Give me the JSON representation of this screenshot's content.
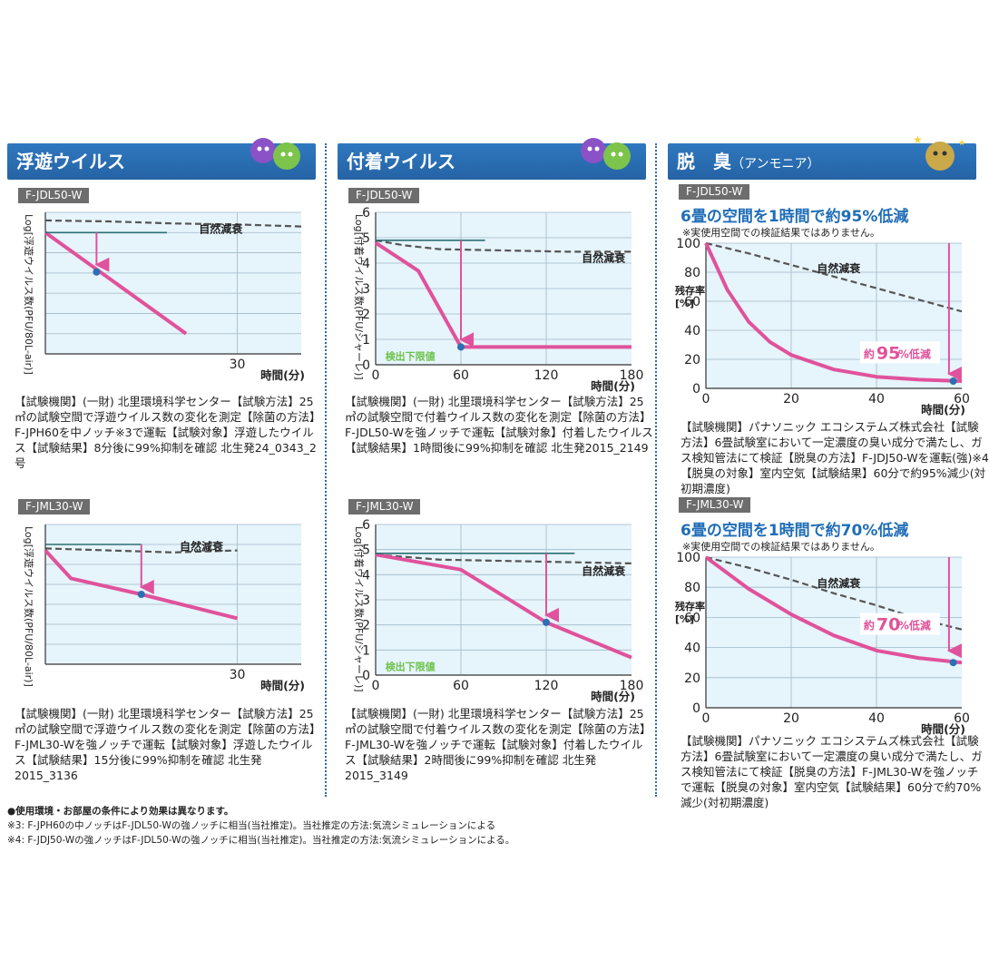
{
  "sections": {
    "s1": {
      "title": "浮遊ウイルス"
    },
    "s2": {
      "title": "付着ウイルス"
    },
    "s3": {
      "title": "脱　臭",
      "subtitle": "（アンモニア）"
    }
  },
  "panels": {
    "p1": {
      "model": "F-JDL50-W",
      "desc": "【試験機関】(一財) 北里環境科学センター【試験方法】25㎥の試験空間で浮遊ウイルス数の変化を測定【除菌の方法】F-JPH60を中ノッチ※3で運転【試験対象】浮遊したウイルス【試験結果】8分後に99%抑制を確認 北生発24_0343_2号"
    },
    "p2": {
      "model": "F-JDL50-W",
      "desc": "【試験機関】(一財) 北里環境科学センター【試験方法】25㎥の試験空間で付着ウイルス数の変化を測定【除菌の方法】F-JDL50-Wを強ノッチで運転【試験対象】付着したウイルス【試験結果】1時間後に99%抑制を確認 北生発2015_2149"
    },
    "p3": {
      "model": "F-JDL50-W",
      "headline": "6畳の空間を1時間で約95%低減",
      "note": "※実使用空間での検証結果ではありません。",
      "desc": "【試験機関】パナソニック エコシステムズ株式会社【試験方法】6畳試験室において一定濃度の臭い成分で満たし、ガス検知管法にて検証【脱臭の方法】F-JDJ50-Wを運転(強)※4【脱臭の対象】室内空気【試験結果】60分で約95%減少(対初期濃度)"
    },
    "p4": {
      "model": "F-JML30-W",
      "desc": "【試験機関】(一財) 北里環境科学センター【試験方法】25㎥の試験空間で浮遊ウイルス数の変化を測定【除菌の方法】F-JML30-Wを強ノッチで運転【試験対象】浮遊したウイルス【試験結果】15分後に99%抑制を確認 北生発2015_3136"
    },
    "p5": {
      "model": "F-JML30-W",
      "desc": "【試験機関】(一財) 北里環境科学センター【試験方法】25㎥の試験空間で付着ウイルス数の変化を測定【除菌の方法】F-JML30-Wを強ノッチで運転【試験対象】付着したウイルス【試験結果】2時間後に99%抑制を確認 北生発2015_3149"
    },
    "p6": {
      "model": "F-JML30-W",
      "headline": "6畳の空間を1時間で約70%低減",
      "note": "※実使用空間での検証結果ではありません。",
      "desc": "【試験機関】パナソニック エコシステムズ株式会社【試験方法】6畳試験室において一定濃度の臭い成分で満たし、ガス検知管法にて検証【脱臭の方法】F-JML30-Wを強ノッチで運転【脱臭の対象】室内空気【試験結果】60分で約70%減少(対初期濃度)"
    }
  },
  "footnotes": [
    "●使用環境・お部屋の条件により効果は異なります。",
    "※3: F-JPH60の中ノッチはF-JDL50-Wの強ノッチに相当(当社推定)。当社推定の方法:気流シミュレーションによる",
    "※4: F-JDJ50-Wの強ノッチはF-JDL50-Wの強ノッチに相当(当社推定)。当社推定の方法:気流シミュレーションによる。"
  ],
  "colors": {
    "header": "#2b6fb4",
    "pink": "#e0529b",
    "teal": "#2a6f74",
    "plot_bg": "#e6f4fb",
    "dashed": "#555555",
    "point": "#2b6fb4",
    "headline": "#1f6db7",
    "limit": "#6cc24a"
  },
  "chart_data": [
    {
      "id": "c1",
      "type": "line",
      "xlabel": "時間(分)",
      "ylabel": "Log[浮遊ウイルス数(PFU/80L-air)]",
      "xlim": [
        0,
        40
      ],
      "ylim": [
        0,
        7
      ],
      "xticks": [
        30
      ],
      "yticks": [],
      "ytick_labels": [],
      "natural_label": "自然減衰",
      "natural_label_at": [
        24,
        6.0
      ],
      "series": [
        {
          "style": "natural",
          "x": [
            0,
            10,
            20,
            30,
            40
          ],
          "y": [
            6.6,
            6.55,
            6.45,
            6.4,
            6.3
          ]
        },
        {
          "style": "product",
          "x": [
            0,
            22
          ],
          "y": [
            6.0,
            1.0
          ]
        },
        {
          "style": "reference",
          "x": [
            0,
            19
          ],
          "y": [
            6.0,
            6.0
          ]
        }
      ],
      "arrow": {
        "x": 8,
        "y_from": 6.0,
        "y_to": 4.05
      },
      "point": [
        8,
        4.05
      ]
    },
    {
      "id": "c2",
      "type": "line",
      "xlabel": "時間(分)",
      "ylabel": "Log[付着ウイルス数(PFU/シャーレ)]",
      "xlim": [
        0,
        180
      ],
      "ylim": [
        0,
        6
      ],
      "xticks": [
        0,
        60,
        120,
        180
      ],
      "yticks": [
        0,
        1,
        2,
        3,
        4,
        5,
        6
      ],
      "natural_label": "自然減衰",
      "natural_label_at": [
        145,
        4.05
      ],
      "limit_label": "検出下限値",
      "limit_label_at": [
        3,
        0.3
      ],
      "series": [
        {
          "style": "natural",
          "x": [
            0,
            20,
            45,
            90,
            135,
            180
          ],
          "y": [
            4.9,
            4.7,
            4.55,
            4.5,
            4.45,
            4.45
          ]
        },
        {
          "style": "product",
          "x": [
            0,
            30,
            60,
            180
          ],
          "y": [
            4.8,
            3.7,
            0.7,
            0.7
          ]
        },
        {
          "style": "reference",
          "x": [
            0,
            77
          ],
          "y": [
            4.9,
            4.9
          ]
        }
      ],
      "arrow": {
        "x": 60,
        "y_from": 4.9,
        "y_to": 0.7
      },
      "point": [
        60,
        0.7
      ]
    },
    {
      "id": "c3",
      "type": "line",
      "xlabel": "時間(分)",
      "ylabel": "残存率[%]",
      "xlim": [
        0,
        60
      ],
      "ylim": [
        0,
        100
      ],
      "xticks": [
        0,
        20,
        40,
        60
      ],
      "yticks": [
        0,
        20,
        40,
        60,
        80,
        100
      ],
      "natural_label": "自然減衰",
      "natural_label_at": [
        26,
        80
      ],
      "callout": {
        "pre": "約",
        "num": "95",
        "post": "%低減",
        "at": [
          37,
          21
        ]
      },
      "series": [
        {
          "style": "natural",
          "x": [
            0,
            10,
            20,
            30,
            40,
            50,
            60
          ],
          "y": [
            100,
            93,
            85,
            77,
            69,
            61,
            53
          ]
        },
        {
          "style": "product",
          "x": [
            0,
            5,
            10,
            15,
            20,
            30,
            40,
            50,
            60
          ],
          "y": [
            100,
            68,
            46,
            32,
            23,
            13,
            8,
            6,
            5
          ]
        }
      ],
      "arrow": {
        "x": 57,
        "y_from": 100,
        "y_to": 5
      },
      "point": [
        58,
        5
      ]
    },
    {
      "id": "c4",
      "type": "line",
      "xlabel": "時間(分)",
      "ylabel": "Log[浮遊ウイルス数(PFU/80L-air)]",
      "xlim": [
        0,
        40
      ],
      "ylim": [
        0,
        7
      ],
      "xticks": [
        30
      ],
      "yticks": [],
      "ytick_labels": [],
      "natural_label": "自然減衰",
      "natural_label_at": [
        21,
        5.7
      ],
      "series": [
        {
          "style": "natural",
          "x": [
            0,
            10,
            20,
            30
          ],
          "y": [
            5.8,
            5.7,
            5.6,
            5.7
          ]
        },
        {
          "style": "product",
          "x": [
            0,
            4,
            15,
            30
          ],
          "y": [
            5.7,
            4.3,
            3.5,
            2.3
          ]
        },
        {
          "style": "reference",
          "x": [
            0,
            15
          ],
          "y": [
            6.0,
            6.0
          ]
        }
      ],
      "arrow": {
        "x": 15,
        "y_from": 6.0,
        "y_to": 3.5
      },
      "point": [
        15,
        3.5
      ]
    },
    {
      "id": "c5",
      "type": "line",
      "xlabel": "時間(分)",
      "ylabel": "Log[付着ウイルス数(PFU/シャーレ)]",
      "xlim": [
        0,
        180
      ],
      "ylim": [
        0,
        6
      ],
      "xticks": [
        0,
        60,
        120,
        180
      ],
      "yticks": [
        0,
        1,
        2,
        3,
        4,
        5,
        6
      ],
      "natural_label": "自然減衰",
      "natural_label_at": [
        145,
        4.0
      ],
      "limit_label": "検出下限値",
      "limit_label_at": [
        3,
        0.3
      ],
      "series": [
        {
          "style": "natural",
          "x": [
            0,
            45,
            90,
            135,
            180
          ],
          "y": [
            4.8,
            4.6,
            4.55,
            4.5,
            4.45
          ]
        },
        {
          "style": "product",
          "x": [
            0,
            60,
            120,
            180
          ],
          "y": [
            4.8,
            4.2,
            2.1,
            0.7
          ]
        },
        {
          "style": "reference",
          "x": [
            0,
            140
          ],
          "y": [
            4.85,
            4.85
          ]
        }
      ],
      "arrow": {
        "x": 120,
        "y_from": 4.85,
        "y_to": 2.1
      },
      "point": [
        120,
        2.1
      ]
    },
    {
      "id": "c6",
      "type": "line",
      "xlabel": "時間(分)",
      "ylabel": "残存率[%]",
      "xlim": [
        0,
        60
      ],
      "ylim": [
        0,
        100
      ],
      "xticks": [
        0,
        20,
        40,
        60
      ],
      "yticks": [
        0,
        20,
        40,
        60,
        80,
        100
      ],
      "natural_label": "自然減衰",
      "natural_label_at": [
        26,
        80
      ],
      "callout": {
        "pre": "約",
        "num": "70",
        "post": "%低減",
        "at": [
          37,
          52
        ]
      },
      "series": [
        {
          "style": "natural",
          "x": [
            0,
            10,
            20,
            30,
            40,
            50,
            60
          ],
          "y": [
            100,
            93,
            85,
            76,
            68,
            59,
            52
          ]
        },
        {
          "style": "product",
          "x": [
            0,
            10,
            20,
            30,
            40,
            50,
            60
          ],
          "y": [
            100,
            79,
            62,
            48,
            38,
            33,
            30
          ]
        }
      ],
      "arrow": {
        "x": 57,
        "y_from": 100,
        "y_to": 33
      },
      "point": [
        58,
        30
      ]
    }
  ]
}
